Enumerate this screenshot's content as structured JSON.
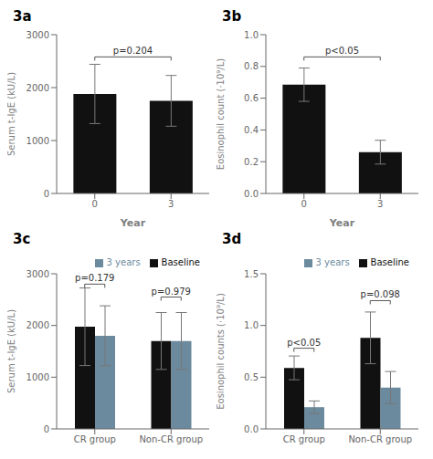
{
  "chart_data": [
    {
      "type": "bar",
      "title": "3a",
      "categories": [
        "0",
        "3"
      ],
      "xlabel": "Year",
      "ylabel": "Serum t-IgE (kU/L)",
      "values": [
        1880,
        1750
      ],
      "errors": [
        560,
        480
      ],
      "color": "#111111",
      "ylim": [
        0,
        3000
      ],
      "yticks": [
        0,
        1000,
        2000,
        3000
      ],
      "annotations": [
        {
          "text": "p=0.204",
          "y": 2580,
          "x": [
            "0",
            "3"
          ]
        }
      ]
    },
    {
      "type": "bar",
      "title": "3b",
      "categories": [
        "0",
        "3"
      ],
      "xlabel": "Year",
      "ylabel": "Eosinophil count (·10⁹/L)",
      "values": [
        0.685,
        0.26
      ],
      "errors": [
        0.105,
        0.075
      ],
      "color": "#111111",
      "ylim": [
        0,
        1
      ],
      "yticks": [
        {
          "value": 0,
          "label": "0.0"
        },
        0.2,
        0.4,
        0.6,
        0.8,
        {
          "value": 1,
          "label": "1.0"
        }
      ],
      "annotations": [
        {
          "text": "p<0.05",
          "y": 0.86,
          "x": [
            "0",
            "3"
          ]
        }
      ]
    },
    {
      "type": "bar",
      "title": "3c",
      "categories": [
        "CR group",
        "Non-CR group"
      ],
      "ylabel": "Serum t-IgE (kU/L)",
      "series": [
        {
          "name": "Baseline",
          "color": "#111111",
          "values": [
            1975,
            1700
          ],
          "errors": [
            750,
            550
          ]
        },
        {
          "name": "3 years",
          "color": "#6b8a9e",
          "values": [
            1800,
            1700
          ],
          "errors": [
            580,
            550
          ]
        }
      ],
      "legend": "upper right",
      "ylim": [
        0,
        3000
      ],
      "yticks": [
        0,
        1000,
        2000,
        3000
      ],
      "annotations": [
        {
          "text": "p=0.179",
          "y": 2800,
          "x": "CR group"
        },
        {
          "text": "p=0.979",
          "y": 2550,
          "x": "Non-CR group"
        }
      ]
    },
    {
      "type": "bar",
      "title": "3d",
      "categories": [
        "CR group",
        "Non-CR group"
      ],
      "ylabel": "Eosinophil counts (·10⁹/L)",
      "series": [
        {
          "name": "Baseline",
          "color": "#111111",
          "values": [
            0.59,
            0.88
          ],
          "errors": [
            0.115,
            0.25
          ]
        },
        {
          "name": "3 years",
          "color": "#6b8a9e",
          "values": [
            0.21,
            0.4
          ],
          "errors": [
            0.06,
            0.155
          ]
        }
      ],
      "legend": "upper right",
      "ylim": [
        0,
        1.5
      ],
      "yticks": [
        {
          "value": 0,
          "label": "0.0"
        },
        0.5,
        {
          "value": 1,
          "label": "1.0"
        },
        1.5
      ],
      "annotations": [
        {
          "text": "p<0.05",
          "y": 0.78,
          "x": "CR group"
        },
        {
          "text": "p=0.098",
          "y": 1.24,
          "x": "Non-CR group"
        }
      ]
    }
  ]
}
